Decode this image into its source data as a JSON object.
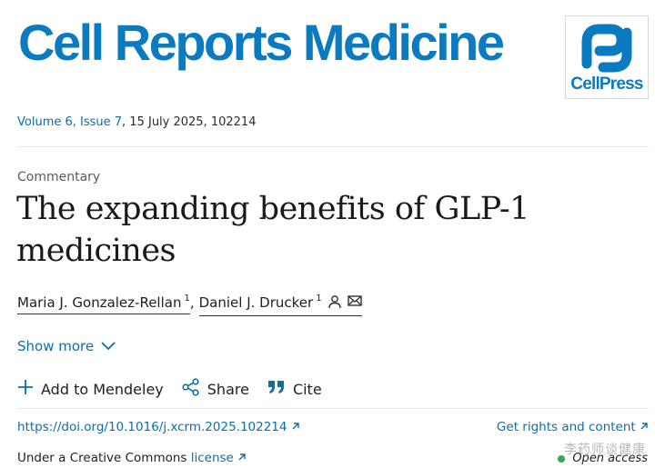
{
  "journal": {
    "title": "Cell Reports Medicine",
    "publisher_logo_text": "CellPress"
  },
  "citation": {
    "volume_issue": "Volume 6, Issue 7",
    "date_id": ", 15 July 2025, 102214"
  },
  "article": {
    "type": "Commentary",
    "title": "The expanding benefits of GLP-1 medicines",
    "authors": [
      {
        "name": "Maria J. Gonzalez-Rellan",
        "sup": "1"
      },
      {
        "name": "Daniel J. Drucker",
        "sup": "1"
      }
    ],
    "author_separator": ","
  },
  "show_more": "Show more",
  "actions": {
    "mendeley": "Add to Mendeley",
    "share": "Share",
    "cite": "Cite"
  },
  "links": {
    "doi": "https://doi.org/10.1016/j.xcrm.2025.102214",
    "rights": "Get rights and content"
  },
  "license": {
    "prefix": "Under a Creative Commons ",
    "link": "license"
  },
  "open_access": "Open access",
  "watermark": "李药师谈健康",
  "colors": {
    "brand_blue": "#0b7bc1",
    "link_blue": "#0b6ea8",
    "open_access_green": "#3aa655"
  },
  "icons": [
    "external-link-icon",
    "person-icon",
    "envelope-icon",
    "chevron-down-icon",
    "plus-icon",
    "share-icon",
    "quote-icon"
  ]
}
